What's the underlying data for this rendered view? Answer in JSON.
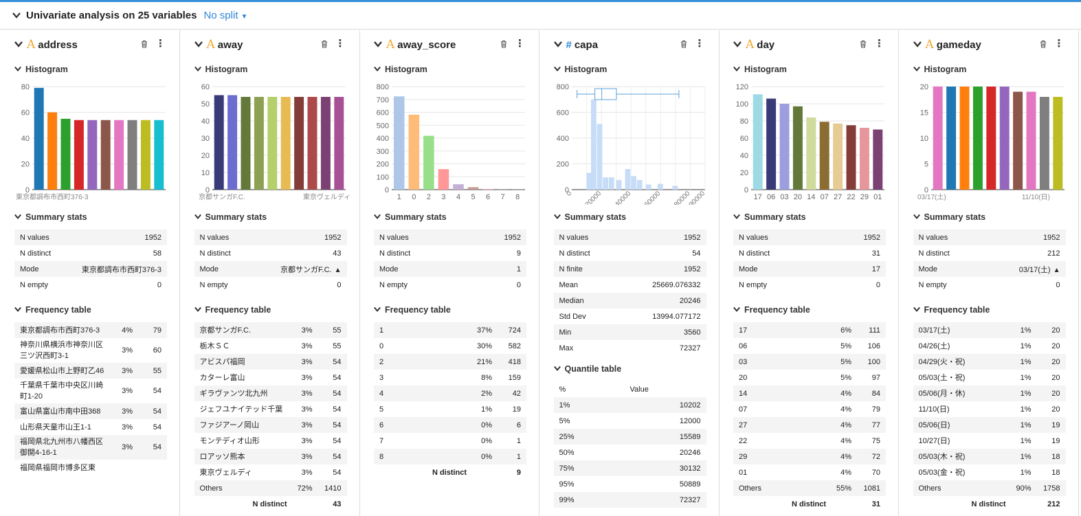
{
  "header": {
    "title": "Univariate analysis on 25 variables",
    "split": "No split"
  },
  "labels": {
    "histogram": "Histogram",
    "summary": "Summary stats",
    "frequency": "Frequency table",
    "quantile": "Quantile table",
    "n_distinct": "N distinct",
    "quantile_col1": "%",
    "quantile_col2": "Value"
  },
  "icons": {
    "collapse": "chevron-down-icon",
    "type_text": "A",
    "type_number": "#",
    "delete": "trash-icon",
    "menu": "kebab-icon",
    "warning": "warning-icon"
  },
  "colors": {
    "accent": "#3a8fd9",
    "text_type": "#f0a830",
    "num_type": "#2f86d6"
  },
  "variables": [
    {
      "name": "address",
      "type": "A",
      "chart_data": {
        "type": "bar",
        "ylim": [
          0,
          80
        ],
        "yticks": [
          0,
          20,
          40,
          60,
          80
        ],
        "xticks": [
          "東京都調布市西町376-3"
        ],
        "values": [
          79,
          60,
          55,
          54,
          54,
          54,
          54,
          54,
          54,
          54
        ],
        "colors": [
          "#1f77b4",
          "#ff7f0e",
          "#2ca02c",
          "#d62728",
          "#9467bd",
          "#8c564b",
          "#e377c2",
          "#7f7f7f",
          "#bcbd22",
          "#17becf"
        ]
      },
      "stats": [
        [
          "N values",
          "1952"
        ],
        [
          "N distinct",
          "58"
        ],
        [
          "Mode",
          "東京都調布市西町376-3"
        ],
        [
          "N empty",
          "0"
        ]
      ],
      "freq": [
        [
          "東京都調布市西町376-3",
          "4%",
          "79"
        ],
        [
          "神奈川県横浜市神奈川区三ツ沢西町3-1",
          "3%",
          "60"
        ],
        [
          "愛媛県松山市上野町乙46",
          "3%",
          "55"
        ],
        [
          "千葉県千葉市中央区川崎町1-20",
          "3%",
          "54"
        ],
        [
          "富山県富山市南中田368",
          "3%",
          "54"
        ],
        [
          "山形県天童市山王1-1",
          "3%",
          "54"
        ],
        [
          "福岡県北九州市八幡西区御開4-16-1",
          "3%",
          "54"
        ],
        [
          "福岡県福岡市博多区東",
          "",
          ""
        ]
      ]
    },
    {
      "name": "away",
      "type": "A",
      "chart_data": {
        "type": "bar",
        "ylim": [
          0,
          60
        ],
        "yticks": [
          0,
          10,
          20,
          30,
          40,
          50,
          60
        ],
        "xticks": [
          "京都サンガF.C.",
          "東京ヴェルディ"
        ],
        "values": [
          55,
          55,
          54,
          54,
          54,
          54,
          54,
          54,
          54,
          54
        ],
        "colors": [
          "#393b79",
          "#6b6ecf",
          "#637939",
          "#8ca252",
          "#b5cf6b",
          "#e7ba52",
          "#843c39",
          "#ad494a",
          "#7b4173",
          "#a55194"
        ]
      },
      "stats": [
        [
          "N values",
          "1952"
        ],
        [
          "N distinct",
          "43"
        ],
        [
          "Mode",
          "京都サンガF.C."
        ],
        [
          "N empty",
          "0"
        ]
      ],
      "freq": [
        [
          "京都サンガF.C.",
          "3%",
          "55"
        ],
        [
          "栃木ＳＣ",
          "3%",
          "55"
        ],
        [
          "アビスパ福岡",
          "3%",
          "54"
        ],
        [
          "カターレ富山",
          "3%",
          "54"
        ],
        [
          "ギラヴァンツ北九州",
          "3%",
          "54"
        ],
        [
          "ジェフユナイテッド千葉",
          "3%",
          "54"
        ],
        [
          "ファジアーノ岡山",
          "3%",
          "54"
        ],
        [
          "モンテディオ山形",
          "3%",
          "54"
        ],
        [
          "ロアッソ熊本",
          "3%",
          "54"
        ],
        [
          "東京ヴェルディ",
          "3%",
          "54"
        ],
        [
          "Others",
          "72%",
          "1410"
        ]
      ],
      "n_distinct": "43"
    },
    {
      "name": "away_score",
      "type": "A",
      "chart_data": {
        "type": "bar",
        "ylim": [
          0,
          800
        ],
        "yticks": [
          0,
          100,
          200,
          300,
          400,
          500,
          600,
          700,
          800
        ],
        "xticks": [
          "1",
          "0",
          "2",
          "3",
          "4",
          "5",
          "6",
          "7",
          "8"
        ],
        "values": [
          724,
          582,
          418,
          159,
          42,
          19,
          6,
          1,
          1
        ],
        "colors": [
          "#aec7e8",
          "#ffbb78",
          "#98df8a",
          "#ff9896",
          "#c5b0d5",
          "#c49c94",
          "#f7b6d2",
          "#c7c7c7",
          "#dbdb8d"
        ]
      },
      "stats": [
        [
          "N values",
          "1952"
        ],
        [
          "N distinct",
          "9"
        ],
        [
          "Mode",
          "1"
        ],
        [
          "N empty",
          "0"
        ]
      ],
      "freq": [
        [
          "1",
          "37%",
          "724"
        ],
        [
          "0",
          "30%",
          "582"
        ],
        [
          "2",
          "21%",
          "418"
        ],
        [
          "3",
          "8%",
          "159"
        ],
        [
          "4",
          "2%",
          "42"
        ],
        [
          "5",
          "1%",
          "19"
        ],
        [
          "6",
          "0%",
          "6"
        ],
        [
          "7",
          "0%",
          "1"
        ],
        [
          "8",
          "0%",
          "1"
        ]
      ],
      "n_distinct": "9"
    },
    {
      "name": "capa",
      "type": "#",
      "chart_data": {
        "type": "histogram",
        "ylim": [
          0,
          800
        ],
        "yticks": [
          0,
          200,
          400,
          600,
          800
        ],
        "xlim": [
          0,
          90000
        ],
        "xticks": [
          "0",
          "20000",
          "40000",
          "60000",
          "80000",
          "90000"
        ],
        "bins": [
          [
            10000,
            130
          ],
          [
            13000,
            700
          ],
          [
            17000,
            510
          ],
          [
            21000,
            95
          ],
          [
            25000,
            95
          ],
          [
            30000,
            75
          ],
          [
            36000,
            160
          ],
          [
            40000,
            105
          ],
          [
            44000,
            75
          ],
          [
            50000,
            40
          ],
          [
            58000,
            45
          ],
          [
            68000,
            30
          ]
        ],
        "box": {
          "min": 3560,
          "q1": 15589,
          "median": 20246,
          "q3": 30132,
          "max": 72327
        }
      },
      "stats": [
        [
          "N values",
          "1952"
        ],
        [
          "N distinct",
          "54"
        ],
        [
          "N finite",
          "1952"
        ],
        [
          "Mean",
          "25669.076332"
        ],
        [
          "Median",
          "20246"
        ],
        [
          "Std Dev",
          "13994.077172"
        ],
        [
          "Min",
          "3560"
        ],
        [
          "Max",
          "72327"
        ]
      ],
      "quantiles": [
        [
          "1%",
          "10202"
        ],
        [
          "5%",
          "12000"
        ],
        [
          "25%",
          "15589"
        ],
        [
          "50%",
          "20246"
        ],
        [
          "75%",
          "30132"
        ],
        [
          "95%",
          "50889"
        ],
        [
          "99%",
          "72327"
        ]
      ]
    },
    {
      "name": "day",
      "type": "A",
      "chart_data": {
        "type": "bar",
        "ylim": [
          0,
          120
        ],
        "yticks": [
          0,
          20,
          40,
          60,
          80,
          100,
          120
        ],
        "xticks": [
          "17",
          "06",
          "03",
          "20",
          "14",
          "07",
          "27",
          "22",
          "29",
          "01"
        ],
        "values": [
          111,
          106,
          100,
          97,
          84,
          79,
          77,
          75,
          72,
          70
        ],
        "colors": [
          "#9edae5",
          "#393b79",
          "#9c9ede",
          "#637939",
          "#cedb9c",
          "#8c6d31",
          "#e7cb94",
          "#843c39",
          "#e7969c",
          "#7b4173"
        ]
      },
      "stats": [
        [
          "N values",
          "1952"
        ],
        [
          "N distinct",
          "31"
        ],
        [
          "Mode",
          "17"
        ],
        [
          "N empty",
          "0"
        ]
      ],
      "freq": [
        [
          "17",
          "6%",
          "111"
        ],
        [
          "06",
          "5%",
          "106"
        ],
        [
          "03",
          "5%",
          "100"
        ],
        [
          "20",
          "5%",
          "97"
        ],
        [
          "14",
          "4%",
          "84"
        ],
        [
          "07",
          "4%",
          "79"
        ],
        [
          "27",
          "4%",
          "77"
        ],
        [
          "22",
          "4%",
          "75"
        ],
        [
          "29",
          "4%",
          "72"
        ],
        [
          "01",
          "4%",
          "70"
        ],
        [
          "Others",
          "55%",
          "1081"
        ]
      ],
      "n_distinct": "31"
    },
    {
      "name": "gameday",
      "type": "A",
      "chart_data": {
        "type": "bar",
        "ylim": [
          0,
          20
        ],
        "yticks": [
          0,
          5,
          10,
          15,
          20
        ],
        "xticks": [
          "03/17(土)",
          "11/10(日)"
        ],
        "values": [
          20,
          20,
          20,
          20,
          20,
          20,
          19,
          19,
          18,
          18
        ],
        "colors": [
          "#e377c2",
          "#1f77b4",
          "#ff7f0e",
          "#2ca02c",
          "#d62728",
          "#9467bd",
          "#8c564b",
          "#e377c2",
          "#7f7f7f",
          "#bcbd22"
        ]
      },
      "stats": [
        [
          "N values",
          "1952"
        ],
        [
          "N distinct",
          "212"
        ],
        [
          "Mode",
          "03/17(土)"
        ],
        [
          "N empty",
          "0"
        ]
      ],
      "freq": [
        [
          "03/17(土)",
          "1%",
          "20"
        ],
        [
          "04/26(土)",
          "1%",
          "20"
        ],
        [
          "04/29(火・祝)",
          "1%",
          "20"
        ],
        [
          "05/03(土・祝)",
          "1%",
          "20"
        ],
        [
          "05/06(月・休)",
          "1%",
          "20"
        ],
        [
          "11/10(日)",
          "1%",
          "20"
        ],
        [
          "05/06(日)",
          "1%",
          "19"
        ],
        [
          "10/27(日)",
          "1%",
          "19"
        ],
        [
          "05/03(木・祝)",
          "1%",
          "18"
        ],
        [
          "05/03(金・祝)",
          "1%",
          "18"
        ],
        [
          "Others",
          "90%",
          "1758"
        ]
      ],
      "n_distinct": "212"
    }
  ]
}
